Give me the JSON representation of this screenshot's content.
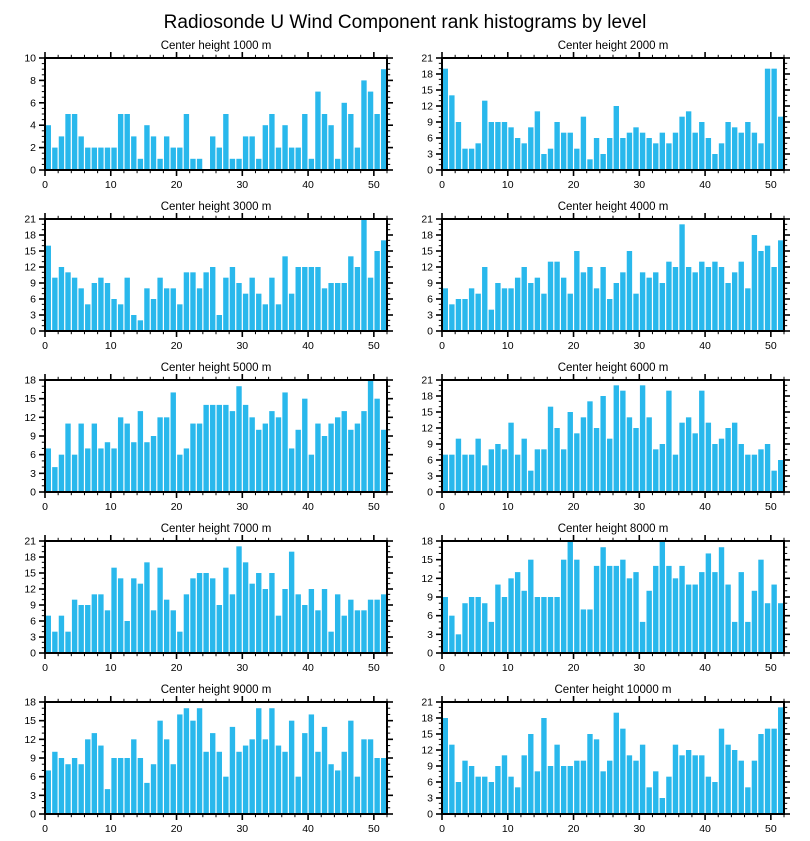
{
  "page_title": "Radiosonde U Wind Component rank histograms by level",
  "axis_color": "#000000",
  "background_color": "#ffffff",
  "chart_data": {
    "type": "bar",
    "title": "Radiosonde U Wind Component rank histograms by level",
    "xlabel": "",
    "ylabel": "",
    "x_range": [
      0,
      52
    ],
    "x_major_ticks": [
      0,
      10,
      20,
      30,
      40,
      50
    ],
    "x_minor_step": 2,
    "grid": false,
    "legend": "none",
    "bar_color": "#29B8EC",
    "layout": "5 rows x 2 columns",
    "subplots": [
      {
        "title": "Center height 1000 m",
        "ylim": [
          0,
          10
        ],
        "ystep": 2,
        "yminor": 0.5,
        "x": "rank 1..52",
        "values": [
          4,
          2,
          3,
          5,
          5,
          3,
          2,
          2,
          2,
          2,
          2,
          5,
          5,
          3,
          1,
          4,
          3,
          1,
          3,
          2,
          2,
          5,
          1,
          1,
          0,
          3,
          2,
          5,
          1,
          1,
          3,
          3,
          1,
          4,
          5,
          2,
          4,
          2,
          2,
          5,
          1,
          7,
          5,
          4,
          1,
          6,
          5,
          2,
          8,
          7,
          5,
          9
        ]
      },
      {
        "title": "Center height 2000 m",
        "ylim": [
          0,
          21
        ],
        "ystep": 3,
        "yminor": 1,
        "x": "rank 1..52",
        "values": [
          19,
          14,
          9,
          4,
          4,
          5,
          13,
          9,
          9,
          9,
          8,
          6,
          5,
          8,
          11,
          3,
          4,
          9,
          7,
          7,
          4,
          10,
          2,
          6,
          3,
          6,
          12,
          6,
          7,
          8,
          7,
          6,
          5,
          7,
          5,
          7,
          10,
          11,
          7,
          9,
          6,
          3,
          5,
          9,
          8,
          7,
          9,
          7,
          5,
          19,
          19,
          10
        ]
      },
      {
        "title": "Center height 3000 m",
        "ylim": [
          0,
          21
        ],
        "ystep": 3,
        "yminor": 1,
        "x": "rank 1..52",
        "values": [
          16,
          10,
          12,
          11,
          10,
          8,
          5,
          9,
          10,
          9,
          6,
          5,
          10,
          3,
          2,
          8,
          6,
          10,
          8,
          8,
          5,
          11,
          11,
          8,
          11,
          12,
          3,
          10,
          12,
          9,
          7,
          10,
          7,
          5,
          10,
          5,
          14,
          7,
          12,
          12,
          12,
          12,
          8,
          9,
          9,
          9,
          14,
          12,
          21,
          10,
          15,
          17
        ]
      },
      {
        "title": "Center height 4000 m",
        "ylim": [
          0,
          21
        ],
        "ystep": 3,
        "yminor": 1,
        "x": "rank 1..52",
        "values": [
          8,
          5,
          6,
          6,
          8,
          7,
          12,
          4,
          9,
          8,
          8,
          10,
          12,
          9,
          10,
          7,
          13,
          13,
          10,
          7,
          15,
          11,
          12,
          8,
          12,
          6,
          9,
          11,
          15,
          7,
          11,
          10,
          11,
          9,
          13,
          12,
          20,
          12,
          11,
          13,
          12,
          13,
          12,
          9,
          11,
          13,
          8,
          18,
          15,
          16,
          12,
          17
        ]
      },
      {
        "title": "Center height 5000 m",
        "ylim": [
          0,
          18
        ],
        "ystep": 3,
        "yminor": 1,
        "x": "rank 1..52",
        "values": [
          7,
          4,
          6,
          11,
          6,
          11,
          7,
          11,
          7,
          8,
          7,
          12,
          11,
          8,
          13,
          8,
          9,
          12,
          12,
          16,
          6,
          7,
          11,
          11,
          14,
          14,
          14,
          14,
          13,
          17,
          14,
          12,
          10,
          11,
          13,
          12,
          16,
          7,
          10,
          15,
          6,
          11,
          9,
          11,
          12,
          13,
          10,
          11,
          13,
          18,
          15,
          10
        ]
      },
      {
        "title": "Center height 6000 m",
        "ylim": [
          0,
          21
        ],
        "ystep": 3,
        "yminor": 1,
        "x": "rank 1..52",
        "values": [
          7,
          7,
          10,
          7,
          7,
          10,
          5,
          8,
          9,
          8,
          13,
          7,
          10,
          4,
          8,
          8,
          16,
          12,
          8,
          15,
          11,
          14,
          17,
          12,
          18,
          10,
          20,
          19,
          14,
          12,
          20,
          14,
          8,
          9,
          19,
          7,
          13,
          14,
          11,
          19,
          13,
          9,
          10,
          12,
          13,
          9,
          7,
          7,
          8,
          9,
          4,
          6
        ]
      },
      {
        "title": "Center height 7000 m",
        "ylim": [
          0,
          21
        ],
        "ystep": 3,
        "yminor": 1,
        "x": "rank 1..52",
        "values": [
          7,
          4,
          7,
          4,
          10,
          9,
          9,
          11,
          11,
          8,
          16,
          14,
          6,
          14,
          13,
          17,
          8,
          16,
          10,
          8,
          4,
          11,
          14,
          15,
          15,
          14,
          9,
          16,
          11,
          20,
          17,
          13,
          15,
          12,
          15,
          7,
          12,
          19,
          11,
          9,
          12,
          8,
          12,
          4,
          11,
          7,
          10,
          8,
          8,
          10,
          10,
          11
        ]
      },
      {
        "title": "Center height 8000 m",
        "ylim": [
          0,
          18
        ],
        "ystep": 3,
        "yminor": 1,
        "x": "rank 1..52",
        "values": [
          9,
          6,
          3,
          8,
          9,
          9,
          8,
          5,
          11,
          9,
          12,
          13,
          10,
          15,
          9,
          9,
          9,
          9,
          15,
          18,
          15,
          7,
          7,
          14,
          17,
          14,
          14,
          15,
          12,
          13,
          5,
          10,
          14,
          18,
          14,
          12,
          14,
          11,
          11,
          13,
          16,
          13,
          17,
          11,
          5,
          13,
          5,
          10,
          15,
          8,
          11,
          8
        ]
      },
      {
        "title": "Center height 9000 m",
        "ylim": [
          0,
          18
        ],
        "ystep": 3,
        "yminor": 1,
        "x": "rank 1..52",
        "values": [
          7,
          10,
          9,
          8,
          9,
          8,
          12,
          13,
          11,
          4,
          9,
          9,
          9,
          12,
          9,
          5,
          8,
          15,
          12,
          8,
          16,
          17,
          15,
          17,
          10,
          13,
          10,
          6,
          14,
          10,
          11,
          12,
          17,
          12,
          17,
          11,
          10,
          15,
          6,
          13,
          16,
          10,
          14,
          8,
          7,
          10,
          15,
          6,
          12,
          12,
          9,
          9
        ]
      },
      {
        "title": "Center height 10000 m",
        "ylim": [
          0,
          21
        ],
        "ystep": 3,
        "yminor": 1,
        "x": "rank 1..52",
        "values": [
          18,
          13,
          6,
          10,
          9,
          7,
          7,
          6,
          9,
          11,
          7,
          5,
          11,
          15,
          8,
          18,
          9,
          13,
          9,
          9,
          10,
          10,
          15,
          14,
          8,
          10,
          19,
          16,
          11,
          10,
          13,
          5,
          8,
          3,
          7,
          13,
          11,
          12,
          11,
          11,
          7,
          6,
          16,
          13,
          12,
          10,
          5,
          10,
          15,
          16,
          16,
          20
        ]
      }
    ]
  }
}
